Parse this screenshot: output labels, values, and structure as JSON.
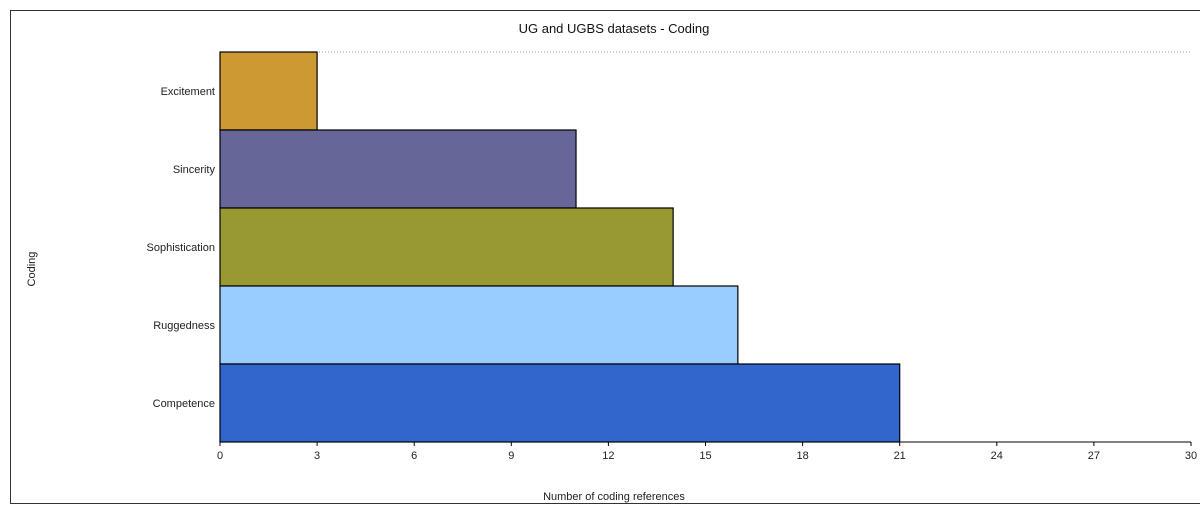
{
  "chart_data": {
    "type": "bar",
    "orientation": "horizontal",
    "title": "UG and UGBS datasets - Coding",
    "xlabel": "Number of coding references",
    "ylabel": "Coding",
    "categories": [
      "Excitement",
      "Sincerity",
      "Sophistication",
      "Ruggedness",
      "Competence"
    ],
    "values": [
      3,
      11,
      14,
      16,
      21
    ],
    "colors": [
      "#cc9933",
      "#666699",
      "#999933",
      "#99ccff",
      "#3366cc"
    ],
    "xlim": [
      0,
      30
    ],
    "xticks": [
      0,
      3,
      6,
      9,
      12,
      15,
      18,
      21,
      24,
      27,
      30
    ],
    "grid": "top-dotted-line",
    "legend": "none"
  }
}
